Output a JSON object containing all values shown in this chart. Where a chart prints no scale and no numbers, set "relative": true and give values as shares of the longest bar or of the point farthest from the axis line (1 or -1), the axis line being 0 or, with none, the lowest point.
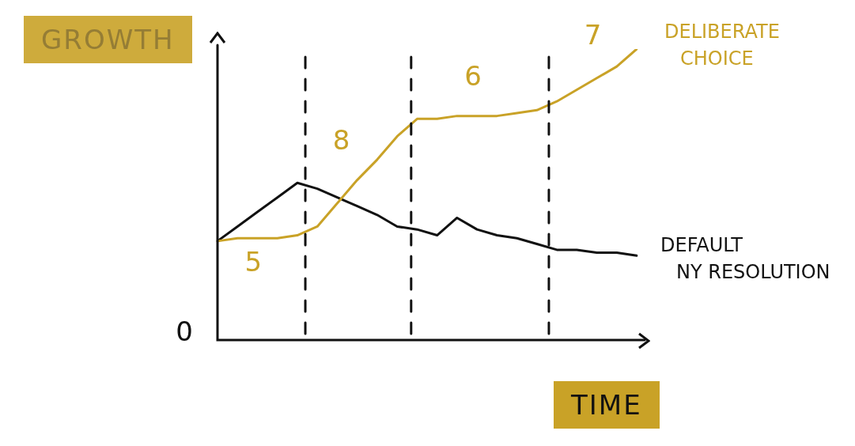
{
  "chart_data": {
    "type": "line",
    "relative": true,
    "xlabel": "TIME",
    "ylabel": "GROWTH",
    "categories": [
      null,
      null,
      null,
      null,
      null,
      null,
      null,
      null,
      null,
      null,
      null,
      null,
      null,
      null,
      null,
      null,
      null,
      null,
      null,
      null,
      null,
      null
    ],
    "series": [
      {
        "name": "DELIBERATE CHOICE",
        "color": "#c9a227",
        "values": [
          0.34,
          0.35,
          0.35,
          0.35,
          0.36,
          0.39,
          0.47,
          0.55,
          0.62,
          0.7,
          0.76,
          0.76,
          0.77,
          0.77,
          0.77,
          0.78,
          0.79,
          0.82,
          0.86,
          0.9,
          0.94,
          1.0
        ]
      },
      {
        "name": "DEFAULT NY RESOLUTION",
        "color": "#111111",
        "values": [
          0.34,
          0.39,
          0.44,
          0.49,
          0.54,
          0.52,
          0.49,
          0.46,
          0.43,
          0.39,
          0.38,
          0.36,
          0.42,
          0.38,
          0.36,
          0.35,
          0.33,
          0.31,
          0.31,
          0.3,
          0.3,
          0.29
        ]
      }
    ],
    "annotations": [
      "0",
      "5",
      "8",
      "6",
      "7"
    ],
    "legend": false,
    "marker": "none",
    "line_style": "solid"
  }
}
